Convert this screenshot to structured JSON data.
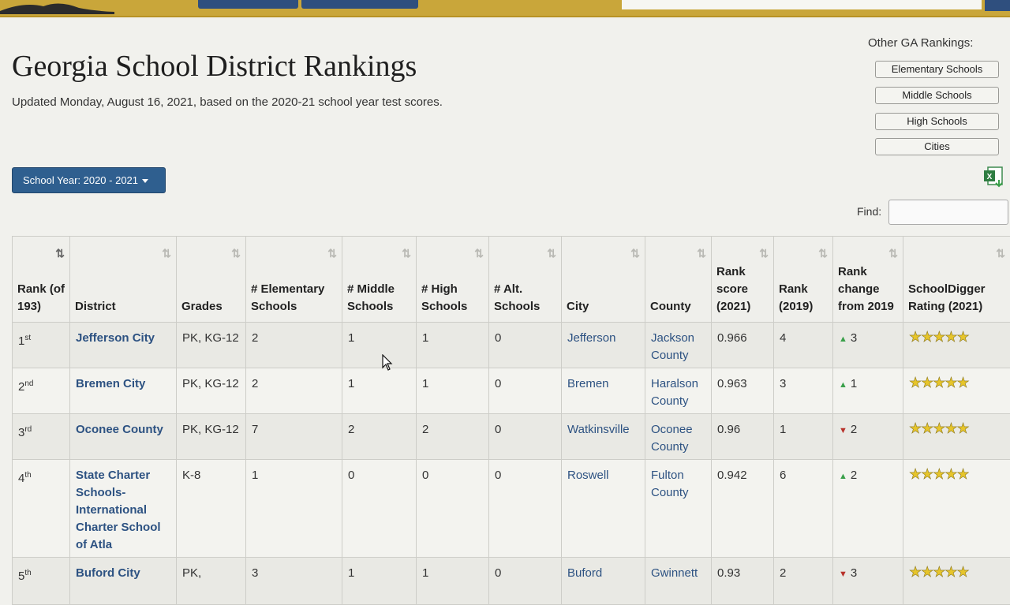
{
  "header": {
    "title": "Georgia School District Rankings",
    "updated": "Updated Monday, August 16, 2021, based on the 2020-21 school year test scores."
  },
  "other_rankings": {
    "title": "Other GA Rankings:",
    "items": [
      "Elementary Schools",
      "Middle Schools",
      "High Schools",
      "Cities"
    ]
  },
  "year_dropdown": {
    "label": "School Year: 2020 - 2021"
  },
  "find": {
    "label": "Find:",
    "value": ""
  },
  "table": {
    "headers": [
      "Rank (of 193)",
      "District",
      "Grades",
      "# Elementary Schools",
      "# Middle Schools",
      "# High Schools",
      "# Alt. Schools",
      "City",
      "County",
      "Rank score (2021)",
      "Rank (2019)",
      "Rank change from 2019",
      "SchoolDigger Rating (2021)"
    ],
    "rows": [
      {
        "rank": "1",
        "suffix": "st",
        "district": "Jefferson City",
        "grades": "PK, KG-12",
        "elem": "2",
        "middle": "1",
        "high": "1",
        "alt": "0",
        "city": "Jefferson",
        "county": "Jackson County",
        "score": "0.966",
        "rank2019": "4",
        "change_dir": "up",
        "change": "3",
        "stars": "★★★★★"
      },
      {
        "rank": "2",
        "suffix": "nd",
        "district": "Bremen City",
        "grades": "PK, KG-12",
        "elem": "2",
        "middle": "1",
        "high": "1",
        "alt": "0",
        "city": "Bremen",
        "county": "Haralson County",
        "score": "0.963",
        "rank2019": "3",
        "change_dir": "up",
        "change": "1",
        "stars": "★★★★★"
      },
      {
        "rank": "3",
        "suffix": "rd",
        "district": "Oconee County",
        "grades": "PK, KG-12",
        "elem": "7",
        "middle": "2",
        "high": "2",
        "alt": "0",
        "city": "Watkinsville",
        "county": "Oconee County",
        "score": "0.96",
        "rank2019": "1",
        "change_dir": "down",
        "change": "2",
        "stars": "★★★★★"
      },
      {
        "rank": "4",
        "suffix": "th",
        "district": "State Charter Schools- International Charter School of Atla",
        "grades": "K-8",
        "elem": "1",
        "middle": "0",
        "high": "0",
        "alt": "0",
        "city": "Roswell",
        "county": "Fulton County",
        "score": "0.942",
        "rank2019": "6",
        "change_dir": "up",
        "change": "2",
        "stars": "★★★★★"
      },
      {
        "rank": "5",
        "suffix": "th",
        "district": "Buford City",
        "grades": "PK,",
        "elem": "3",
        "middle": "1",
        "high": "1",
        "alt": "0",
        "city": "Buford",
        "county": "Gwinnett",
        "score": "0.93",
        "rank2019": "2",
        "change_dir": "down",
        "change": "3",
        "stars": "★★★★★"
      }
    ]
  },
  "colors": {
    "banner": "#c9a63a",
    "link": "#2d5282",
    "button": "#2f5f8f",
    "up": "#3aa04a",
    "down": "#b8322b",
    "star": "#e7c52a"
  }
}
